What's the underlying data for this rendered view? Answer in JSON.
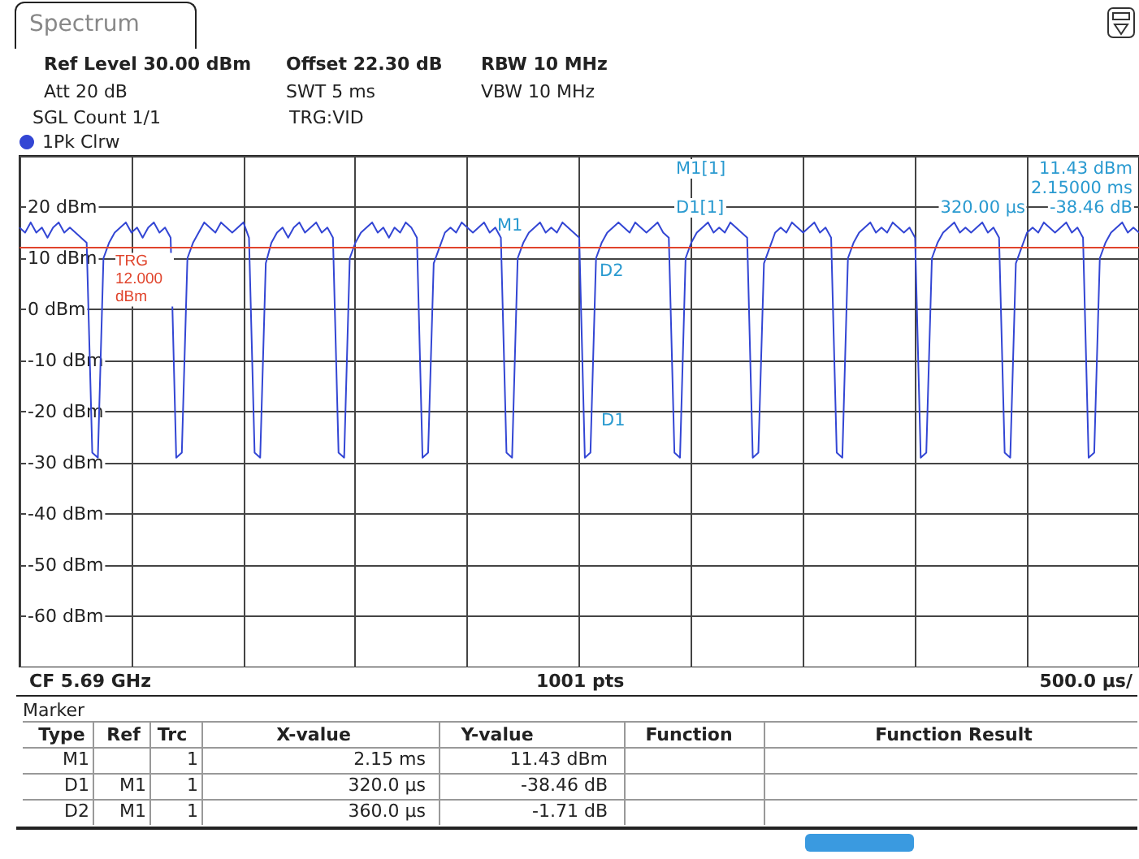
{
  "chart_data": {
    "type": "line",
    "title": "Spectrum",
    "annotations": [
      "Ref Level 30.00 dBm",
      "Offset 22.30 dB",
      "RBW 10 MHz",
      "Att 20 dB",
      "SWT 5 ms",
      "VBW 10 MHz",
      "SGL Count 1/1",
      "TRG:VID",
      "M1[1]",
      "11.43 dBm",
      "2.15000 ms",
      "D1[1]",
      "-38.46 dB",
      "320.00 µs",
      "M1",
      "D2",
      "D1",
      "CF 5.69 GHz",
      "1001 pts",
      "500.0 µs/",
      "Marker",
      "Type",
      "Ref",
      "Trc",
      "X-value",
      "Y-value",
      "Function",
      "Function Result",
      "M1",
      "1",
      "2.15 ms",
      "11.43 dBm",
      "D1",
      "M1",
      "1",
      "320.0 µs",
      "-38.46 dB",
      "D2",
      "M1",
      "1",
      "360.0 µs",
      "-1.71 dB"
    ],
    "categories": [
      null,
      null,
      null,
      null,
      null,
      null,
      null,
      null,
      null,
      null,
      null,
      null,
      null,
      null,
      null,
      null,
      null,
      null,
      null,
      null,
      null,
      null,
      null,
      null,
      null,
      null,
      null,
      null,
      null,
      null,
      null,
      null,
      null,
      null,
      null,
      null,
      null,
      null,
      null,
      null,
      null,
      null,
      null,
      null,
      null,
      null,
      null,
      null,
      null,
      null,
      null,
      null,
      null,
      null,
      null,
      null,
      null,
      null,
      null,
      null,
      null,
      null,
      null,
      null,
      null,
      null,
      null,
      null,
      null,
      null,
      null,
      null,
      null,
      null,
      null,
      null,
      null,
      null,
      null,
      null,
      null,
      null,
      null,
      null,
      null,
      null,
      null,
      null,
      null,
      null,
      null,
      null,
      null,
      null,
      null,
      null,
      null,
      null,
      null,
      null,
      null,
      null,
      null,
      null,
      null,
      null,
      null,
      null,
      null,
      null,
      null,
      null,
      null,
      null,
      null,
      null,
      null,
      null,
      null,
      null,
      null,
      null,
      null,
      null,
      null,
      null,
      null,
      null,
      null,
      null,
      null,
      null,
      null,
      null,
      null,
      null,
      null,
      null,
      null,
      null,
      null,
      null,
      null,
      null,
      null,
      null,
      null,
      null,
      null,
      null,
      null,
      null,
      null,
      null,
      null,
      null,
      null,
      null,
      null,
      null,
      null,
      null,
      null,
      null,
      null,
      null,
      null,
      null,
      null,
      null,
      null,
      null,
      null,
      null,
      null,
      null,
      null,
      null,
      null,
      null,
      null,
      null,
      null,
      null,
      null,
      null,
      null,
      null,
      null,
      null,
      null,
      null,
      null,
      null,
      null,
      null,
      null,
      null,
      null,
      null,
      null
    ],
    "series": [
      {
        "name": "1Pk Clrw",
        "color": "#3346d4",
        "values": [
          16,
          15,
          17,
          15,
          16,
          14,
          16,
          17,
          15,
          16,
          15,
          14,
          13,
          -28,
          -29,
          10,
          13,
          15,
          16,
          17,
          15,
          16,
          14,
          16,
          17,
          15,
          16,
          14,
          -29,
          -28,
          10,
          13,
          15,
          17,
          16,
          15,
          17,
          16,
          15,
          16,
          17,
          14,
          -28,
          -29,
          9,
          13,
          15,
          16,
          14,
          16,
          17,
          15,
          16,
          17,
          15,
          16,
          14,
          -28,
          -29,
          10,
          13,
          15,
          16,
          17,
          15,
          16,
          14,
          16,
          15,
          17,
          16,
          14,
          -29,
          -28,
          9,
          12,
          15,
          16,
          15,
          17,
          16,
          15,
          16,
          17,
          15,
          16,
          14,
          -28,
          -29,
          10,
          13,
          15,
          16,
          17,
          15,
          16,
          15,
          17,
          16,
          15,
          14,
          -29,
          -28,
          10,
          13,
          15,
          16,
          17,
          16,
          15,
          17,
          16,
          15,
          16,
          17,
          15,
          14,
          -28,
          -29,
          10,
          13,
          15,
          16,
          17,
          15,
          16,
          15,
          17,
          16,
          15,
          14,
          -29,
          -28,
          9,
          12,
          15,
          16,
          15,
          17,
          16,
          15,
          16,
          17,
          15,
          16,
          14,
          -28,
          -29,
          10,
          13,
          15,
          16,
          17,
          15,
          16,
          15,
          17,
          16,
          15,
          16,
          14,
          -29,
          -28,
          10,
          13,
          15,
          16,
          17,
          15,
          16,
          15,
          16,
          17,
          15,
          16,
          14,
          -28,
          -29,
          9,
          12,
          15,
          16,
          15,
          17,
          16,
          15,
          16,
          17,
          15,
          16,
          14,
          -29,
          -28,
          10,
          13,
          15,
          16,
          17,
          15,
          16,
          15
        ]
      }
    ],
    "ylim": [
      -70,
      30
    ],
    "yticks": [
      {
        "value": -70,
        "label": null
      },
      {
        "value": -60,
        "label": "-60 dBm"
      },
      {
        "value": -50,
        "label": "-50 dBm"
      },
      {
        "value": -40,
        "label": "-40 dBm"
      },
      {
        "value": -30,
        "label": "-30 dBm"
      },
      {
        "value": -20,
        "label": "-20 dBm"
      },
      {
        "value": -10,
        "label": "-10 dBm"
      },
      {
        "value": 0,
        "label": "0 dBm"
      },
      {
        "value": 10,
        "label": "10 dBm"
      },
      {
        "value": 20,
        "label": "20 dBm"
      },
      {
        "value": 30,
        "label": null
      }
    ],
    "ref_lines": [
      {
        "axis": "y",
        "value": 12,
        "label": "TRG 12.000 dBm",
        "color": "#e0442c"
      }
    ],
    "grid": true,
    "legend": "top left",
    "tick_labels": "y"
  }
}
